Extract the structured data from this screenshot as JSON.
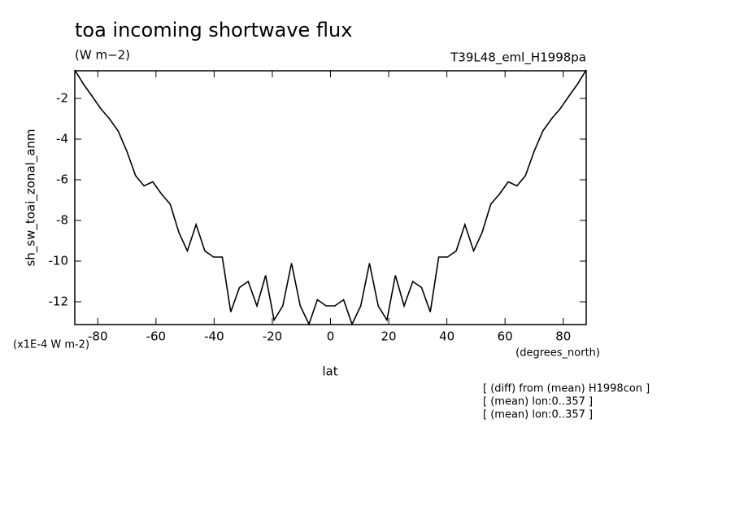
{
  "chart_data": {
    "type": "line",
    "title": "toa incoming shortwave flux",
    "subtitle": "(W m−2)",
    "run_label": "T39L48_eml_H1998pa",
    "y_label": "sh_sw_toai_zonal_anm",
    "y_unit": "(x1E-4 W m-2)",
    "x_unit": "(degrees_north)",
    "x_label": "lat",
    "notes": [
      "[ (diff) from (mean) H1998con ]",
      "[ (mean) lon:0..357 ]",
      "[ (mean) lon:0..357 ]"
    ],
    "x": [
      -87.9,
      -84.9,
      -81.9,
      -79.0,
      -76.0,
      -73.0,
      -70.0,
      -67.0,
      -64.1,
      -61.1,
      -58.1,
      -55.1,
      -52.1,
      -49.2,
      -46.2,
      -43.2,
      -40.2,
      -37.2,
      -34.3,
      -31.3,
      -28.3,
      -25.3,
      -22.3,
      -19.4,
      -16.4,
      -13.4,
      -10.4,
      -7.4,
      -4.5,
      -1.5,
      1.5,
      4.5,
      7.4,
      10.4,
      13.4,
      16.4,
      19.4,
      22.3,
      25.3,
      28.3,
      31.3,
      34.3,
      37.2,
      40.2,
      43.2,
      46.2,
      49.2,
      52.1,
      55.1,
      58.1,
      61.1,
      64.1,
      67.0,
      70.0,
      73.0,
      76.0,
      79.0,
      81.9,
      84.9,
      87.9
    ],
    "series": [
      {
        "color": "#000000",
        "values": [
          -0.6,
          -1.3,
          -1.9,
          -2.5,
          -3.0,
          -3.6,
          -4.6,
          -5.8,
          -6.3,
          -6.1,
          -6.7,
          -7.2,
          -8.6,
          -9.5,
          -8.2,
          -9.5,
          -9.8,
          -9.8,
          -12.5,
          -11.3,
          -11.0,
          -12.2,
          -10.7,
          -12.9,
          -12.2,
          -10.1,
          -12.2,
          -13.1,
          -11.9,
          -12.2,
          -12.2,
          -11.9,
          -13.1,
          -12.2,
          -10.1,
          -12.2,
          -12.9,
          -10.7,
          -12.2,
          -11.0,
          -11.3,
          -12.5,
          -9.8,
          -9.8,
          -9.5,
          -8.2,
          -9.5,
          -8.6,
          -7.2,
          -6.7,
          -6.1,
          -6.3,
          -5.8,
          -4.6,
          -3.6,
          -3.0,
          -2.5,
          -1.9,
          -1.3,
          -0.6
        ]
      }
    ],
    "xlim": [
      -87.9,
      87.9
    ],
    "xticks": [
      -80,
      -60,
      -40,
      -20,
      0,
      20,
      40,
      60,
      80
    ],
    "ylim": [
      -13.12,
      -0.64
    ],
    "yticks": [
      -12,
      -10,
      -8,
      -6,
      -4,
      -2
    ]
  }
}
